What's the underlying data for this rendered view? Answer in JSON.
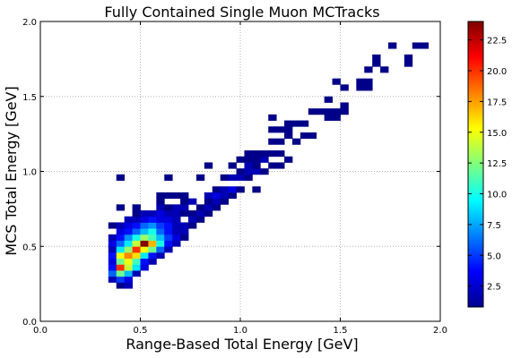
{
  "chart_data": {
    "type": "heatmap",
    "title": "Fully Contained Single Muon MCTracks",
    "xlabel": "Range-Based Total Energy [GeV]",
    "ylabel": "MCS Total Energy [GeV]",
    "xlim": [
      0.0,
      2.0
    ],
    "ylim": [
      0.0,
      2.0
    ],
    "x_ticks": [
      "0.0",
      "0.5",
      "1.0",
      "1.5",
      "2.0"
    ],
    "y_ticks": [
      "0.0",
      "0.5",
      "1.0",
      "1.5",
      "2.0"
    ],
    "grid": true,
    "bin_width": 0.04,
    "colormap": "jet",
    "colorbar": {
      "min": 0.8,
      "max": 24,
      "ticks": [
        "2.5",
        "5.0",
        "7.5",
        "10.0",
        "12.5",
        "15.0",
        "17.5",
        "20.0",
        "22.5"
      ]
    },
    "bins": [
      {
        "x": 0.38,
        "y": 0.22,
        "v": 1
      },
      {
        "x": 0.42,
        "y": 0.22,
        "v": 2
      },
      {
        "x": 0.34,
        "y": 0.26,
        "v": 2
      },
      {
        "x": 0.38,
        "y": 0.26,
        "v": 5
      },
      {
        "x": 0.42,
        "y": 0.26,
        "v": 3
      },
      {
        "x": 0.34,
        "y": 0.3,
        "v": 6
      },
      {
        "x": 0.38,
        "y": 0.3,
        "v": 12
      },
      {
        "x": 0.42,
        "y": 0.3,
        "v": 8
      },
      {
        "x": 0.46,
        "y": 0.3,
        "v": 2
      },
      {
        "x": 0.34,
        "y": 0.34,
        "v": 4
      },
      {
        "x": 0.38,
        "y": 0.34,
        "v": 20
      },
      {
        "x": 0.42,
        "y": 0.34,
        "v": 14
      },
      {
        "x": 0.46,
        "y": 0.34,
        "v": 9
      },
      {
        "x": 0.5,
        "y": 0.34,
        "v": 3
      },
      {
        "x": 0.34,
        "y": 0.38,
        "v": 3
      },
      {
        "x": 0.38,
        "y": 0.38,
        "v": 12
      },
      {
        "x": 0.42,
        "y": 0.38,
        "v": 15
      },
      {
        "x": 0.46,
        "y": 0.38,
        "v": 11
      },
      {
        "x": 0.5,
        "y": 0.38,
        "v": 4
      },
      {
        "x": 0.54,
        "y": 0.38,
        "v": 2
      },
      {
        "x": 0.34,
        "y": 0.42,
        "v": 4
      },
      {
        "x": 0.38,
        "y": 0.42,
        "v": 15
      },
      {
        "x": 0.42,
        "y": 0.42,
        "v": 18
      },
      {
        "x": 0.46,
        "y": 0.42,
        "v": 16
      },
      {
        "x": 0.5,
        "y": 0.42,
        "v": 9
      },
      {
        "x": 0.54,
        "y": 0.42,
        "v": 4
      },
      {
        "x": 0.58,
        "y": 0.42,
        "v": 2
      },
      {
        "x": 0.34,
        "y": 0.46,
        "v": 2
      },
      {
        "x": 0.38,
        "y": 0.46,
        "v": 9
      },
      {
        "x": 0.42,
        "y": 0.46,
        "v": 13
      },
      {
        "x": 0.46,
        "y": 0.46,
        "v": 20
      },
      {
        "x": 0.5,
        "y": 0.46,
        "v": 15
      },
      {
        "x": 0.54,
        "y": 0.46,
        "v": 12
      },
      {
        "x": 0.58,
        "y": 0.46,
        "v": 6
      },
      {
        "x": 0.62,
        "y": 0.46,
        "v": 2
      },
      {
        "x": 0.34,
        "y": 0.5,
        "v": 3
      },
      {
        "x": 0.38,
        "y": 0.5,
        "v": 6
      },
      {
        "x": 0.42,
        "y": 0.5,
        "v": 9
      },
      {
        "x": 0.46,
        "y": 0.5,
        "v": 14
      },
      {
        "x": 0.5,
        "y": 0.5,
        "v": 24
      },
      {
        "x": 0.54,
        "y": 0.5,
        "v": 17
      },
      {
        "x": 0.58,
        "y": 0.5,
        "v": 10
      },
      {
        "x": 0.62,
        "y": 0.5,
        "v": 4
      },
      {
        "x": 0.66,
        "y": 0.5,
        "v": 2
      },
      {
        "x": 0.34,
        "y": 0.54,
        "v": 2
      },
      {
        "x": 0.38,
        "y": 0.54,
        "v": 4
      },
      {
        "x": 0.42,
        "y": 0.54,
        "v": 7
      },
      {
        "x": 0.46,
        "y": 0.54,
        "v": 10
      },
      {
        "x": 0.5,
        "y": 0.54,
        "v": 13
      },
      {
        "x": 0.54,
        "y": 0.54,
        "v": 11
      },
      {
        "x": 0.58,
        "y": 0.54,
        "v": 8
      },
      {
        "x": 0.62,
        "y": 0.54,
        "v": 5
      },
      {
        "x": 0.66,
        "y": 0.54,
        "v": 3
      },
      {
        "x": 0.7,
        "y": 0.54,
        "v": 1
      },
      {
        "x": 0.38,
        "y": 0.58,
        "v": 3
      },
      {
        "x": 0.42,
        "y": 0.58,
        "v": 4
      },
      {
        "x": 0.46,
        "y": 0.58,
        "v": 6
      },
      {
        "x": 0.5,
        "y": 0.58,
        "v": 8
      },
      {
        "x": 0.54,
        "y": 0.58,
        "v": 10
      },
      {
        "x": 0.58,
        "y": 0.58,
        "v": 6
      },
      {
        "x": 0.62,
        "y": 0.58,
        "v": 4
      },
      {
        "x": 0.66,
        "y": 0.58,
        "v": 2
      },
      {
        "x": 0.7,
        "y": 0.58,
        "v": 2
      },
      {
        "x": 0.34,
        "y": 0.62,
        "v": 1
      },
      {
        "x": 0.38,
        "y": 0.62,
        "v": 2
      },
      {
        "x": 0.42,
        "y": 0.62,
        "v": 3
      },
      {
        "x": 0.46,
        "y": 0.62,
        "v": 4
      },
      {
        "x": 0.5,
        "y": 0.62,
        "v": 6
      },
      {
        "x": 0.54,
        "y": 0.62,
        "v": 7
      },
      {
        "x": 0.58,
        "y": 0.62,
        "v": 5
      },
      {
        "x": 0.62,
        "y": 0.62,
        "v": 4
      },
      {
        "x": 0.66,
        "y": 0.62,
        "v": 2
      },
      {
        "x": 0.7,
        "y": 0.62,
        "v": 2
      },
      {
        "x": 0.74,
        "y": 0.62,
        "v": 1
      },
      {
        "x": 0.42,
        "y": 0.66,
        "v": 2
      },
      {
        "x": 0.46,
        "y": 0.66,
        "v": 2
      },
      {
        "x": 0.5,
        "y": 0.66,
        "v": 3
      },
      {
        "x": 0.54,
        "y": 0.66,
        "v": 4
      },
      {
        "x": 0.58,
        "y": 0.66,
        "v": 3
      },
      {
        "x": 0.62,
        "y": 0.66,
        "v": 3
      },
      {
        "x": 0.66,
        "y": 0.66,
        "v": 2
      },
      {
        "x": 0.74,
        "y": 0.66,
        "v": 2
      },
      {
        "x": 0.78,
        "y": 0.66,
        "v": 1
      },
      {
        "x": 0.46,
        "y": 0.7,
        "v": 1
      },
      {
        "x": 0.5,
        "y": 0.7,
        "v": 2
      },
      {
        "x": 0.54,
        "y": 0.7,
        "v": 2
      },
      {
        "x": 0.58,
        "y": 0.7,
        "v": 3
      },
      {
        "x": 0.62,
        "y": 0.7,
        "v": 2
      },
      {
        "x": 0.66,
        "y": 0.7,
        "v": 2
      },
      {
        "x": 0.7,
        "y": 0.7,
        "v": 1
      },
      {
        "x": 0.74,
        "y": 0.7,
        "v": 1
      },
      {
        "x": 0.78,
        "y": 0.7,
        "v": 2
      },
      {
        "x": 0.82,
        "y": 0.7,
        "v": 1
      },
      {
        "x": 0.38,
        "y": 0.74,
        "v": 1
      },
      {
        "x": 0.46,
        "y": 0.74,
        "v": 1
      },
      {
        "x": 0.58,
        "y": 0.74,
        "v": 2
      },
      {
        "x": 0.62,
        "y": 0.74,
        "v": 1
      },
      {
        "x": 0.66,
        "y": 0.74,
        "v": 2
      },
      {
        "x": 0.7,
        "y": 0.74,
        "v": 2
      },
      {
        "x": 0.78,
        "y": 0.74,
        "v": 1
      },
      {
        "x": 0.82,
        "y": 0.74,
        "v": 2
      },
      {
        "x": 0.86,
        "y": 0.74,
        "v": 1
      },
      {
        "x": 0.58,
        "y": 0.78,
        "v": 1
      },
      {
        "x": 0.7,
        "y": 0.78,
        "v": 1
      },
      {
        "x": 0.74,
        "y": 0.78,
        "v": 2
      },
      {
        "x": 0.82,
        "y": 0.78,
        "v": 1
      },
      {
        "x": 0.86,
        "y": 0.78,
        "v": 2
      },
      {
        "x": 0.9,
        "y": 0.78,
        "v": 1
      },
      {
        "x": 0.58,
        "y": 0.82,
        "v": 1
      },
      {
        "x": 0.62,
        "y": 0.82,
        "v": 1
      },
      {
        "x": 0.66,
        "y": 0.82,
        "v": 1
      },
      {
        "x": 0.7,
        "y": 0.82,
        "v": 1
      },
      {
        "x": 0.82,
        "y": 0.82,
        "v": 2
      },
      {
        "x": 0.86,
        "y": 0.82,
        "v": 3
      },
      {
        "x": 0.9,
        "y": 0.82,
        "v": 2
      },
      {
        "x": 0.94,
        "y": 0.82,
        "v": 1
      },
      {
        "x": 0.86,
        "y": 0.86,
        "v": 1
      },
      {
        "x": 0.9,
        "y": 0.86,
        "v": 2
      },
      {
        "x": 0.94,
        "y": 0.86,
        "v": 3
      },
      {
        "x": 0.98,
        "y": 0.86,
        "v": 1
      },
      {
        "x": 1.06,
        "y": 0.86,
        "v": 1
      },
      {
        "x": 0.38,
        "y": 0.94,
        "v": 1
      },
      {
        "x": 0.62,
        "y": 0.94,
        "v": 1
      },
      {
        "x": 0.78,
        "y": 0.94,
        "v": 1
      },
      {
        "x": 0.9,
        "y": 0.94,
        "v": 1
      },
      {
        "x": 0.94,
        "y": 0.94,
        "v": 2
      },
      {
        "x": 0.98,
        "y": 0.94,
        "v": 2
      },
      {
        "x": 1.02,
        "y": 0.94,
        "v": 1
      },
      {
        "x": 0.98,
        "y": 0.98,
        "v": 1
      },
      {
        "x": 1.02,
        "y": 0.98,
        "v": 2
      },
      {
        "x": 1.06,
        "y": 0.98,
        "v": 2
      },
      {
        "x": 1.1,
        "y": 0.98,
        "v": 1
      },
      {
        "x": 0.82,
        "y": 1.02,
        "v": 1
      },
      {
        "x": 0.94,
        "y": 1.02,
        "v": 1
      },
      {
        "x": 1.02,
        "y": 1.02,
        "v": 2
      },
      {
        "x": 1.06,
        "y": 1.02,
        "v": 1
      },
      {
        "x": 1.14,
        "y": 1.02,
        "v": 1
      },
      {
        "x": 1.18,
        "y": 1.02,
        "v": 1
      },
      {
        "x": 0.98,
        "y": 1.06,
        "v": 1
      },
      {
        "x": 1.02,
        "y": 1.06,
        "v": 1
      },
      {
        "x": 1.06,
        "y": 1.06,
        "v": 1
      },
      {
        "x": 1.1,
        "y": 1.06,
        "v": 2
      },
      {
        "x": 1.22,
        "y": 1.06,
        "v": 1
      },
      {
        "x": 1.02,
        "y": 1.1,
        "v": 1
      },
      {
        "x": 1.06,
        "y": 1.1,
        "v": 1
      },
      {
        "x": 1.1,
        "y": 1.1,
        "v": 1
      },
      {
        "x": 1.14,
        "y": 1.1,
        "v": 1
      },
      {
        "x": 1.18,
        "y": 1.1,
        "v": 1
      },
      {
        "x": 1.14,
        "y": 1.18,
        "v": 1
      },
      {
        "x": 1.18,
        "y": 1.18,
        "v": 1
      },
      {
        "x": 1.26,
        "y": 1.18,
        "v": 1
      },
      {
        "x": 1.22,
        "y": 1.22,
        "v": 1
      },
      {
        "x": 1.3,
        "y": 1.22,
        "v": 1
      },
      {
        "x": 1.34,
        "y": 1.22,
        "v": 1
      },
      {
        "x": 1.14,
        "y": 1.26,
        "v": 1
      },
      {
        "x": 1.18,
        "y": 1.26,
        "v": 1
      },
      {
        "x": 1.22,
        "y": 1.26,
        "v": 1
      },
      {
        "x": 1.22,
        "y": 1.3,
        "v": 1
      },
      {
        "x": 1.26,
        "y": 1.3,
        "v": 1
      },
      {
        "x": 1.3,
        "y": 1.3,
        "v": 1
      },
      {
        "x": 1.14,
        "y": 1.34,
        "v": 1
      },
      {
        "x": 1.42,
        "y": 1.34,
        "v": 1
      },
      {
        "x": 1.46,
        "y": 1.34,
        "v": 1
      },
      {
        "x": 1.34,
        "y": 1.38,
        "v": 1
      },
      {
        "x": 1.38,
        "y": 1.38,
        "v": 1
      },
      {
        "x": 1.42,
        "y": 1.38,
        "v": 1
      },
      {
        "x": 1.46,
        "y": 1.38,
        "v": 1
      },
      {
        "x": 1.5,
        "y": 1.38,
        "v": 1
      },
      {
        "x": 1.5,
        "y": 1.42,
        "v": 1
      },
      {
        "x": 1.42,
        "y": 1.46,
        "v": 1
      },
      {
        "x": 1.5,
        "y": 1.54,
        "v": 1
      },
      {
        "x": 1.58,
        "y": 1.54,
        "v": 1
      },
      {
        "x": 1.62,
        "y": 1.54,
        "v": 1
      },
      {
        "x": 1.46,
        "y": 1.58,
        "v": 1
      },
      {
        "x": 1.58,
        "y": 1.58,
        "v": 1
      },
      {
        "x": 1.62,
        "y": 1.58,
        "v": 1
      },
      {
        "x": 1.62,
        "y": 1.66,
        "v": 1
      },
      {
        "x": 1.7,
        "y": 1.66,
        "v": 1
      },
      {
        "x": 1.66,
        "y": 1.7,
        "v": 1
      },
      {
        "x": 1.82,
        "y": 1.7,
        "v": 1
      },
      {
        "x": 1.66,
        "y": 1.74,
        "v": 1
      },
      {
        "x": 1.82,
        "y": 1.74,
        "v": 1
      },
      {
        "x": 1.74,
        "y": 1.82,
        "v": 1
      },
      {
        "x": 1.86,
        "y": 1.82,
        "v": 1
      },
      {
        "x": 1.9,
        "y": 1.82,
        "v": 1
      }
    ]
  }
}
